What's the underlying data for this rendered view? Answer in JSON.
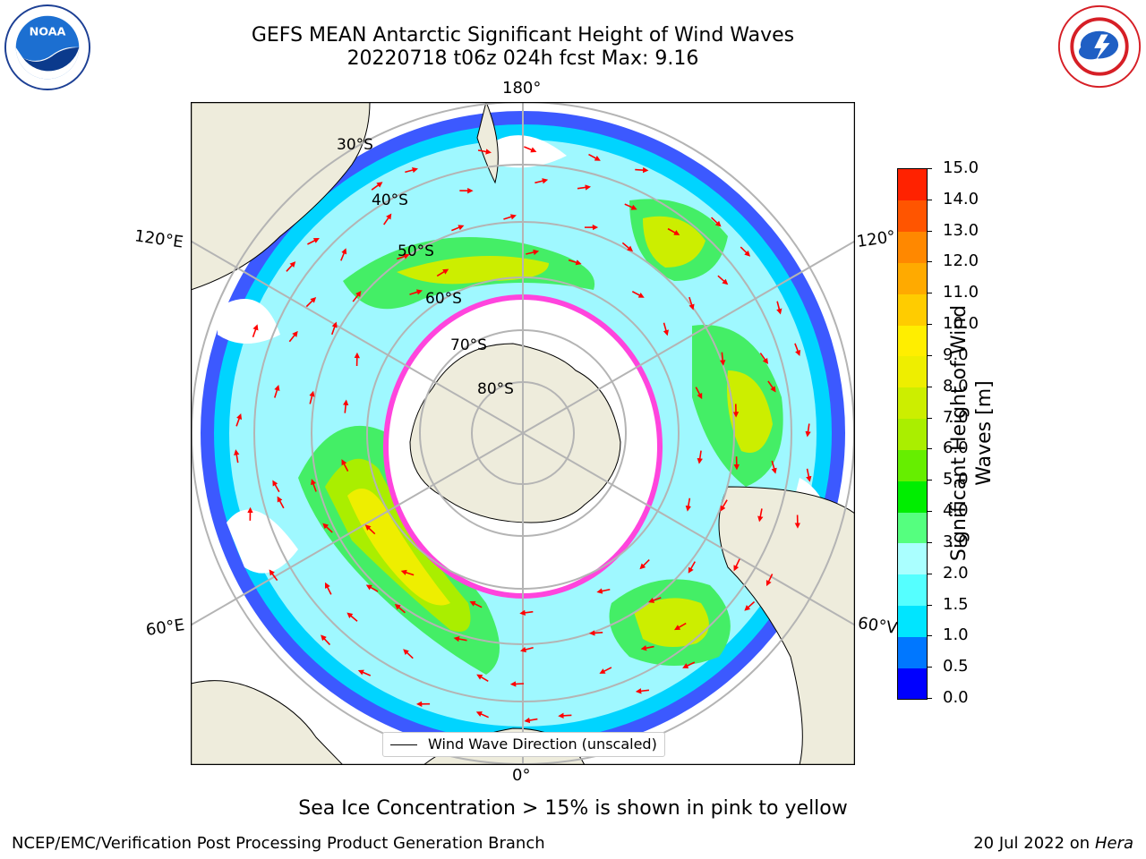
{
  "header": {
    "title_line1": "GEFS MEAN Antarctic Significant Height of Wind Waves",
    "title_line2": "20220718 t06z 024h fcst   Max: 9.16"
  },
  "logos": {
    "left": "NOAA",
    "right": "NATIONAL WEATHER SERVICE"
  },
  "map": {
    "projection": "south-polar-stereographic",
    "longitude_labels": {
      "top": "180°",
      "bottom": "0°",
      "upper_left": "120°E",
      "lower_left": "60°E",
      "upper_right": "120°",
      "lower_right": "60°V"
    },
    "latitude_labels": [
      "30°S",
      "40°S",
      "50°S",
      "60°S",
      "70°S",
      "80°S"
    ],
    "legend_label": "Wind Wave Direction (unscaled)",
    "arrow_color": "#ff0000",
    "land_color": "#eeecdc",
    "grid_color": "#b4b4b4",
    "sea_ice_color": "#ff44dd"
  },
  "colorbar": {
    "title": "Significant Height of Wind Waves [m]",
    "title_lines": [
      "Significant Height of Wind",
      "Waves [m]"
    ],
    "ticks": [
      "0.0",
      "0.5",
      "1.0",
      "1.5",
      "2.0",
      "3.0",
      "4.0",
      "5.0",
      "6.0",
      "7.0",
      "8.0",
      "9.0",
      "10.0",
      "11.0",
      "12.0",
      "13.0",
      "14.0",
      "15.0"
    ],
    "colors": [
      "#0000ff",
      "#0077ff",
      "#00e5ff",
      "#55ffff",
      "#aaffff",
      "#55ff7f",
      "#00ee00",
      "#66ee00",
      "#aaee00",
      "#ccee00",
      "#eeee00",
      "#ffee00",
      "#ffcc00",
      "#ffaa00",
      "#ff8800",
      "#ff5500",
      "#ff2200"
    ]
  },
  "caption": "Sea Ice Concentration > 15% is shown in pink to yellow",
  "footer": {
    "left": "NCEP/EMC/Verification Post Processing Product Generation Branch",
    "right_prefix": "20 Jul 2022 on ",
    "right_host": "Hera"
  }
}
